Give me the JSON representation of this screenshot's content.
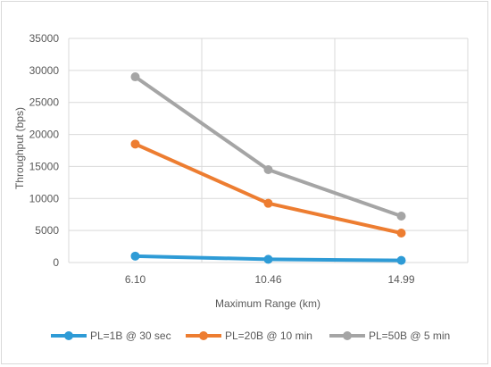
{
  "chart_data": {
    "type": "line",
    "title": "",
    "xlabel": "Maximum Range (km)",
    "ylabel": "Throughput (bps)",
    "categories": [
      "6.10",
      "10.46",
      "14.99"
    ],
    "ylim": [
      0,
      35000
    ],
    "yticks": [
      0,
      5000,
      10000,
      15000,
      20000,
      25000,
      30000,
      35000
    ],
    "grid": true,
    "legend_position": "bottom",
    "series": [
      {
        "name": "PL=1B @ 30 sec",
        "color": "#2e9bd6",
        "values": [
          1000,
          500,
          330
        ]
      },
      {
        "name": "PL=20B @ 10 min",
        "color": "#ed7d31",
        "values": [
          18500,
          9250,
          4600
        ]
      },
      {
        "name": "PL=50B @ 5 min",
        "color": "#a5a5a5",
        "values": [
          29000,
          14500,
          7250
        ]
      }
    ]
  }
}
